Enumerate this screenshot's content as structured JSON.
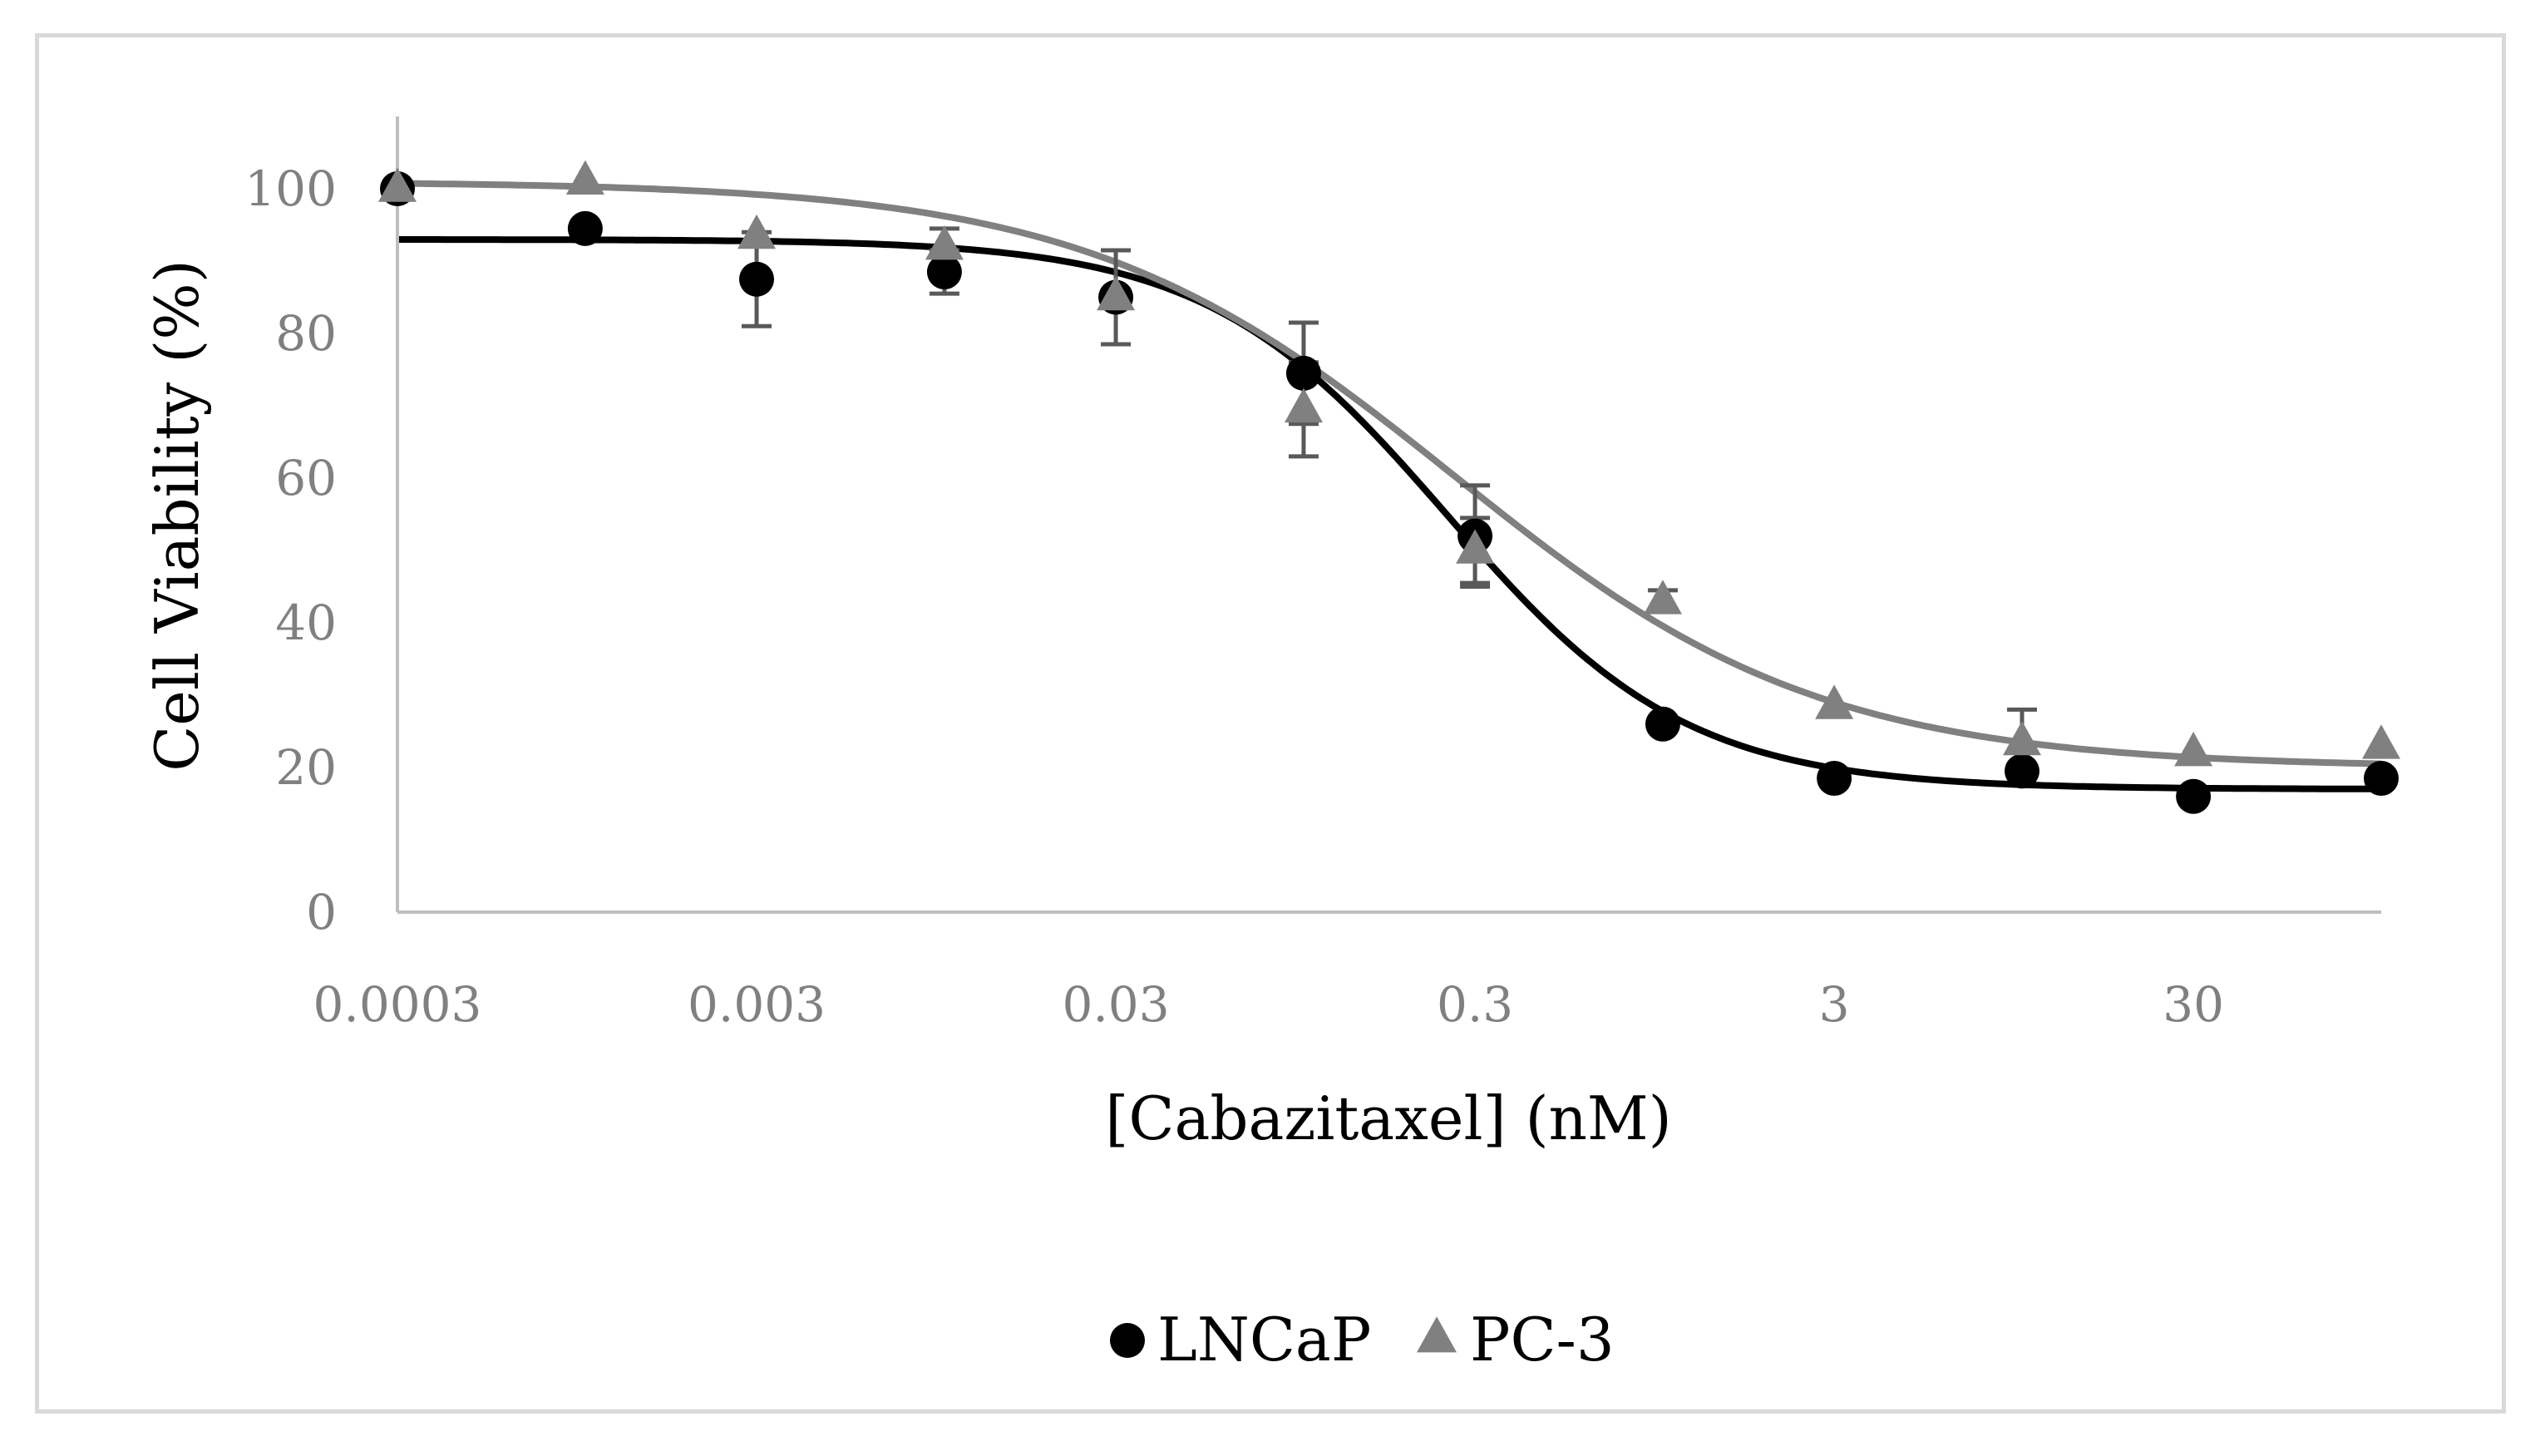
{
  "chart_data": {
    "type": "scatter",
    "title": "",
    "xlabel": "[Cabazitaxel] (nM)",
    "ylabel": "Cell Viability (%)",
    "x_scale": "log",
    "xlim": [
      0.0003,
      100
    ],
    "ylim": [
      0,
      110
    ],
    "x_ticks": [
      0.0003,
      0.003,
      0.03,
      0.3,
      3,
      30
    ],
    "x_tick_labels": [
      "0.0003",
      "0.003",
      "0.03",
      "0.3",
      "3",
      "30"
    ],
    "y_ticks": [
      0,
      20,
      40,
      60,
      80,
      100
    ],
    "y_tick_labels": [
      "0",
      "20",
      "40",
      "60",
      "80",
      "100"
    ],
    "grid": false,
    "legend_position": "bottom",
    "series": [
      {
        "name": "LNCaP",
        "marker": "circle",
        "color": "#000000",
        "x": [
          0.0003,
          0.001,
          0.003,
          0.01,
          0.03,
          0.1,
          0.3,
          1,
          3,
          10,
          30,
          100
        ],
        "y": [
          100,
          94.5,
          87.5,
          88.5,
          85,
          74.5,
          52,
          26,
          18.5,
          19.5,
          16,
          18.5
        ],
        "error": [
          0,
          0,
          6.5,
          3,
          0,
          7,
          7,
          0,
          0,
          0,
          0,
          0
        ],
        "fit": {
          "bottom": 17,
          "top": 93,
          "ec50": 0.25,
          "hill": 1.3
        }
      },
      {
        "name": "PC-3",
        "marker": "triangle",
        "color": "#808080",
        "x": [
          0.0003,
          0.001,
          0.003,
          0.01,
          0.03,
          0.1,
          0.3,
          1,
          3,
          10,
          30,
          100
        ],
        "y": [
          100,
          101,
          93.5,
          92,
          85,
          69.5,
          50,
          43,
          28.5,
          23.5,
          22,
          23
        ],
        "error": [
          0,
          0,
          0,
          2.5,
          6.5,
          6.5,
          4.5,
          1.5,
          0,
          4.5,
          0,
          0
        ],
        "fit": {
          "bottom": 20,
          "top": 101,
          "ec50": 0.26,
          "hill": 0.85
        }
      }
    ]
  }
}
